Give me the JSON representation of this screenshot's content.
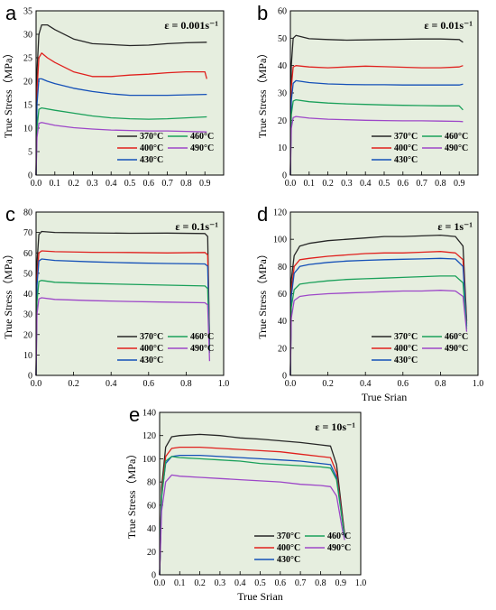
{
  "chart_data": [
    {
      "panel": "a",
      "type": "line",
      "rate_label": "ε = 0.001s⁻¹",
      "xlabel": "",
      "ylabel": "True Stress（MPa）",
      "xlim": [
        0,
        1.0
      ],
      "ylim": [
        0,
        35
      ],
      "xticks": [
        "0.0",
        "0.1",
        "0.2",
        "0.3",
        "0.4",
        "0.5",
        "0.6",
        "0.7",
        "0.8",
        "0.9"
      ],
      "yticks": [
        "0",
        "5",
        "10",
        "15",
        "20",
        "25",
        "30",
        "35"
      ],
      "legend": [
        "370°C",
        "460°C",
        "400°C",
        "490°C",
        "430°C"
      ],
      "series": [
        {
          "name": "370°C",
          "color": "#262626",
          "x": [
            0,
            0.005,
            0.015,
            0.03,
            0.06,
            0.1,
            0.2,
            0.3,
            0.4,
            0.5,
            0.6,
            0.7,
            0.8,
            0.91
          ],
          "y": [
            0,
            22,
            30,
            32,
            32,
            31,
            29,
            28,
            27.8,
            27.6,
            27.7,
            28,
            28.2,
            28.3
          ]
        },
        {
          "name": "400°C",
          "color": "#e0201d",
          "x": [
            0,
            0.005,
            0.015,
            0.03,
            0.06,
            0.1,
            0.2,
            0.3,
            0.4,
            0.5,
            0.6,
            0.7,
            0.8,
            0.9,
            0.91
          ],
          "y": [
            0,
            18,
            25,
            26,
            25,
            24,
            22,
            21,
            21,
            21.3,
            21.5,
            21.8,
            22,
            22,
            20.5
          ]
        },
        {
          "name": "430°C",
          "color": "#1450b8",
          "x": [
            0,
            0.005,
            0.015,
            0.03,
            0.06,
            0.1,
            0.2,
            0.3,
            0.4,
            0.5,
            0.6,
            0.7,
            0.8,
            0.91
          ],
          "y": [
            0,
            15,
            20.5,
            20.5,
            20,
            19.5,
            18.5,
            17.8,
            17.3,
            17,
            17,
            17,
            17.1,
            17.2
          ]
        },
        {
          "name": "460°C",
          "color": "#1aa05a",
          "x": [
            0,
            0.005,
            0.015,
            0.03,
            0.1,
            0.2,
            0.3,
            0.4,
            0.5,
            0.6,
            0.7,
            0.8,
            0.91
          ],
          "y": [
            0,
            10,
            14,
            14.3,
            13.8,
            13.2,
            12.6,
            12.2,
            12,
            11.9,
            12,
            12.2,
            12.4
          ]
        },
        {
          "name": "490°C",
          "color": "#9d47c8",
          "x": [
            0,
            0.005,
            0.015,
            0.03,
            0.1,
            0.2,
            0.3,
            0.4,
            0.5,
            0.6,
            0.7,
            0.8,
            0.91
          ],
          "y": [
            0,
            8,
            11,
            11.2,
            10.6,
            10.1,
            9.8,
            9.6,
            9.5,
            9.4,
            9.4,
            9.3,
            9.2
          ]
        }
      ]
    },
    {
      "panel": "b",
      "type": "line",
      "rate_label": "ε = 0.01s⁻¹",
      "xlabel": "",
      "ylabel": "True Stress（MPa）",
      "xlim": [
        0,
        1.0
      ],
      "ylim": [
        0,
        60
      ],
      "xticks": [
        "0.0",
        "0.1",
        "0.2",
        "0.3",
        "0.4",
        "0.5",
        "0.6",
        "0.7",
        "0.8",
        "0.9"
      ],
      "yticks": [
        "0",
        "10",
        "20",
        "30",
        "40",
        "50",
        "60"
      ],
      "legend": [
        "370°C",
        "460°C",
        "400°C",
        "490°C",
        "430°C"
      ],
      "series": [
        {
          "name": "370°C",
          "color": "#262626",
          "x": [
            0,
            0.005,
            0.015,
            0.03,
            0.1,
            0.2,
            0.3,
            0.4,
            0.5,
            0.6,
            0.7,
            0.8,
            0.9,
            0.92
          ],
          "y": [
            0,
            40,
            50,
            51,
            49.8,
            49.5,
            49.3,
            49.4,
            49.5,
            49.6,
            49.7,
            49.7,
            49.5,
            48.5
          ]
        },
        {
          "name": "400°C",
          "color": "#e0201d",
          "x": [
            0,
            0.005,
            0.015,
            0.03,
            0.1,
            0.2,
            0.3,
            0.4,
            0.5,
            0.6,
            0.7,
            0.8,
            0.9,
            0.92
          ],
          "y": [
            0,
            32,
            39.5,
            40,
            39.5,
            39.2,
            39.5,
            39.8,
            39.6,
            39.4,
            39.2,
            39.2,
            39.5,
            40
          ]
        },
        {
          "name": "430°C",
          "color": "#1450b8",
          "x": [
            0,
            0.005,
            0.015,
            0.03,
            0.1,
            0.2,
            0.3,
            0.4,
            0.5,
            0.6,
            0.7,
            0.8,
            0.9,
            0.92
          ],
          "y": [
            0,
            27,
            33.5,
            34.5,
            33.8,
            33.3,
            33.1,
            33,
            33,
            32.9,
            32.9,
            32.9,
            32.9,
            33.2
          ]
        },
        {
          "name": "460°C",
          "color": "#1aa05a",
          "x": [
            0,
            0.005,
            0.015,
            0.03,
            0.1,
            0.2,
            0.3,
            0.4,
            0.5,
            0.6,
            0.7,
            0.8,
            0.9,
            0.92
          ],
          "y": [
            0,
            22,
            27,
            27.5,
            26.8,
            26.3,
            26,
            25.8,
            25.6,
            25.5,
            25.4,
            25.3,
            25.3,
            23.8
          ]
        },
        {
          "name": "490°C",
          "color": "#9d47c8",
          "x": [
            0,
            0.005,
            0.015,
            0.03,
            0.1,
            0.2,
            0.3,
            0.4,
            0.5,
            0.6,
            0.7,
            0.8,
            0.9,
            0.92
          ],
          "y": [
            0,
            17,
            21,
            21.4,
            20.8,
            20.4,
            20.2,
            20,
            19.9,
            19.8,
            19.8,
            19.7,
            19.6,
            19.5
          ]
        }
      ]
    },
    {
      "panel": "c",
      "type": "line",
      "rate_label": "ε = 0.1s⁻¹",
      "xlabel": "",
      "ylabel": "True Stress（MPa）",
      "xlim": [
        0,
        1.0
      ],
      "ylim": [
        0,
        80
      ],
      "xticks": [
        "0.0",
        "0.2",
        "0.4",
        "0.6",
        "0.8",
        "1.0"
      ],
      "yticks": [
        "0",
        "10",
        "20",
        "30",
        "40",
        "50",
        "60",
        "70",
        "80"
      ],
      "legend": [
        "370°C",
        "460°C",
        "400°C",
        "490°C",
        "430°C"
      ],
      "series": [
        {
          "name": "370°C",
          "color": "#262626",
          "x": [
            0,
            0.005,
            0.015,
            0.03,
            0.1,
            0.3,
            0.5,
            0.7,
            0.9,
            0.915,
            0.925
          ],
          "y": [
            0,
            55,
            69,
            70.5,
            70,
            69.8,
            69.6,
            69.7,
            69.5,
            68,
            15
          ]
        },
        {
          "name": "400°C",
          "color": "#e0201d",
          "x": [
            0,
            0.005,
            0.015,
            0.03,
            0.1,
            0.3,
            0.5,
            0.7,
            0.9,
            0.915,
            0.925
          ],
          "y": [
            0,
            48,
            60,
            61,
            60.6,
            60.3,
            60.2,
            60,
            60.2,
            59,
            14
          ]
        },
        {
          "name": "430°C",
          "color": "#1450b8",
          "x": [
            0,
            0.005,
            0.015,
            0.03,
            0.1,
            0.3,
            0.5,
            0.7,
            0.9,
            0.915,
            0.925
          ],
          "y": [
            0,
            44,
            56,
            57,
            56.3,
            55.6,
            55.1,
            54.8,
            54.6,
            53.5,
            13
          ]
        },
        {
          "name": "460°C",
          "color": "#1aa05a",
          "x": [
            0,
            0.005,
            0.015,
            0.03,
            0.1,
            0.3,
            0.5,
            0.7,
            0.9,
            0.915,
            0.925
          ],
          "y": [
            0,
            36,
            46,
            46.5,
            45.6,
            45,
            44.6,
            44.2,
            43.8,
            42.5,
            11
          ]
        },
        {
          "name": "490°C",
          "color": "#9d47c8",
          "x": [
            0,
            0.005,
            0.015,
            0.03,
            0.1,
            0.3,
            0.5,
            0.7,
            0.9,
            0.915,
            0.925
          ],
          "y": [
            0,
            30,
            37.5,
            38,
            37.2,
            36.6,
            36.2,
            35.9,
            35.6,
            34.5,
            7
          ]
        }
      ]
    },
    {
      "panel": "d",
      "type": "line",
      "rate_label": "ε = 1s⁻¹",
      "xlabel": "True Srian",
      "ylabel": "True Stress（MPa）",
      "xlim": [
        0,
        1.0
      ],
      "ylim": [
        0,
        120
      ],
      "xticks": [
        "0.0",
        "0.2",
        "0.4",
        "0.6",
        "0.8",
        "1.0"
      ],
      "yticks": [
        "0",
        "20",
        "40",
        "60",
        "80",
        "100",
        "120"
      ],
      "legend": [
        "370°C",
        "460°C",
        "400°C",
        "490°C",
        "430°C"
      ],
      "series": [
        {
          "name": "370°C",
          "color": "#262626",
          "x": [
            0,
            0.005,
            0.02,
            0.05,
            0.1,
            0.2,
            0.3,
            0.4,
            0.5,
            0.6,
            0.7,
            0.8,
            0.88,
            0.92,
            0.94
          ],
          "y": [
            0,
            70,
            88,
            95,
            97,
            99,
            100,
            101,
            102,
            102,
            102.5,
            103,
            102,
            95,
            40
          ]
        },
        {
          "name": "400°C",
          "color": "#e0201d",
          "x": [
            0,
            0.005,
            0.02,
            0.05,
            0.1,
            0.2,
            0.3,
            0.4,
            0.5,
            0.6,
            0.7,
            0.8,
            0.88,
            0.92,
            0.94
          ],
          "y": [
            0,
            62,
            80,
            85,
            86,
            87.5,
            88.5,
            89.5,
            90,
            90,
            90.5,
            91,
            90,
            85,
            38
          ]
        },
        {
          "name": "430°C",
          "color": "#1450b8",
          "x": [
            0,
            0.005,
            0.02,
            0.05,
            0.1,
            0.2,
            0.3,
            0.4,
            0.5,
            0.6,
            0.7,
            0.8,
            0.88,
            0.92,
            0.94
          ],
          "y": [
            0,
            58,
            75,
            80,
            81.5,
            83,
            84,
            84.5,
            85,
            85.3,
            85.6,
            86,
            85.5,
            80,
            36
          ]
        },
        {
          "name": "460°C",
          "color": "#1aa05a",
          "x": [
            0,
            0.005,
            0.02,
            0.05,
            0.1,
            0.2,
            0.3,
            0.4,
            0.5,
            0.6,
            0.7,
            0.8,
            0.88,
            0.92,
            0.94
          ],
          "y": [
            0,
            50,
            63,
            67,
            68,
            69.5,
            70.5,
            71,
            71.5,
            72,
            72.5,
            73,
            73,
            68,
            34
          ]
        },
        {
          "name": "490°C",
          "color": "#9d47c8",
          "x": [
            0,
            0.005,
            0.02,
            0.05,
            0.1,
            0.2,
            0.3,
            0.4,
            0.5,
            0.6,
            0.7,
            0.8,
            0.88,
            0.92,
            0.94
          ],
          "y": [
            0,
            42,
            55,
            58,
            59,
            60,
            60.5,
            61,
            61.5,
            62,
            62,
            62.5,
            62,
            58,
            32
          ]
        }
      ]
    },
    {
      "panel": "e",
      "type": "line",
      "rate_label": "ε = 10s⁻¹",
      "xlabel": "True Srian",
      "ylabel": "True Stress（MPa）",
      "xlim": [
        0,
        1.0
      ],
      "ylim": [
        0,
        140
      ],
      "xticks": [
        "0.0",
        "0.1",
        "0.2",
        "0.3",
        "0.4",
        "0.5",
        "0.6",
        "0.7",
        "0.8",
        "0.9",
        "1.0"
      ],
      "yticks": [
        "0",
        "20",
        "40",
        "60",
        "80",
        "100",
        "120",
        "140"
      ],
      "legend": [
        "370°C",
        "460°C",
        "400°C",
        "490°C",
        "430°C"
      ],
      "series": [
        {
          "name": "370°C",
          "color": "#262626",
          "x": [
            0,
            0.01,
            0.03,
            0.06,
            0.1,
            0.2,
            0.3,
            0.4,
            0.5,
            0.6,
            0.7,
            0.8,
            0.85,
            0.88,
            0.91,
            0.92
          ],
          "y": [
            0,
            75,
            110,
            119,
            120,
            121,
            120,
            118,
            117,
            115.5,
            114,
            112,
            111,
            95,
            50,
            35
          ]
        },
        {
          "name": "400°C",
          "color": "#e0201d",
          "x": [
            0,
            0.01,
            0.03,
            0.06,
            0.1,
            0.2,
            0.3,
            0.4,
            0.5,
            0.6,
            0.7,
            0.8,
            0.85,
            0.88,
            0.91,
            0.92
          ],
          "y": [
            0,
            70,
            102,
            109,
            110,
            110,
            109,
            108,
            107,
            106,
            104,
            102,
            101,
            88,
            48,
            34
          ]
        },
        {
          "name": "430°C",
          "color": "#1450b8",
          "x": [
            0,
            0.01,
            0.03,
            0.06,
            0.1,
            0.2,
            0.3,
            0.4,
            0.5,
            0.6,
            0.7,
            0.8,
            0.85,
            0.88,
            0.91,
            0.92
          ],
          "y": [
            0,
            68,
            96,
            102,
            103,
            103,
            102,
            101,
            100,
            99,
            98,
            96,
            95,
            84,
            46,
            33
          ]
        },
        {
          "name": "460°C",
          "color": "#1aa05a",
          "x": [
            0,
            0.01,
            0.03,
            0.06,
            0.1,
            0.2,
            0.3,
            0.4,
            0.5,
            0.6,
            0.7,
            0.8,
            0.85,
            0.88,
            0.91,
            0.92
          ],
          "y": [
            0,
            66,
            98,
            102,
            101,
            100,
            99,
            98,
            96,
            95,
            94,
            93,
            92,
            82,
            45,
            32
          ]
        },
        {
          "name": "490°C",
          "color": "#9d47c8",
          "x": [
            0,
            0.01,
            0.03,
            0.06,
            0.1,
            0.2,
            0.3,
            0.4,
            0.5,
            0.6,
            0.7,
            0.8,
            0.85,
            0.88,
            0.91,
            0.92
          ],
          "y": [
            0,
            55,
            80,
            86,
            85,
            84,
            83,
            82,
            81,
            80,
            78,
            77,
            76,
            68,
            38,
            30
          ]
        }
      ]
    }
  ]
}
